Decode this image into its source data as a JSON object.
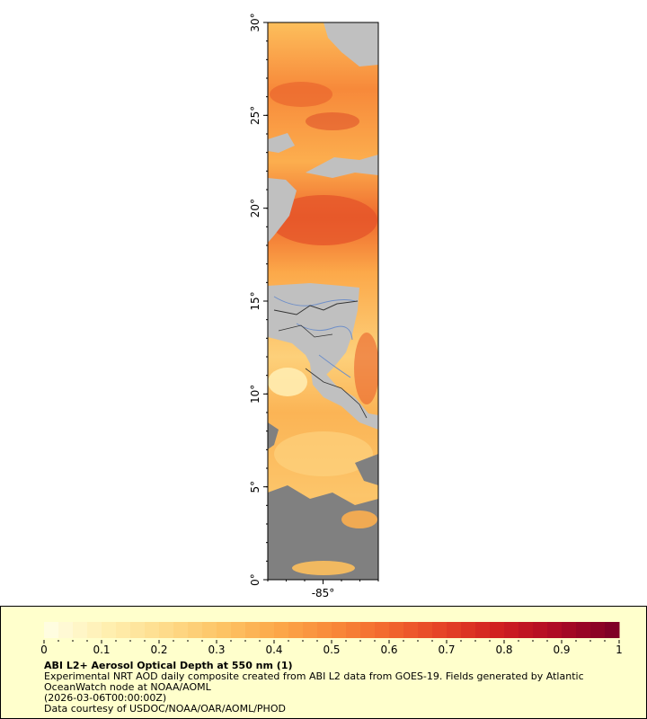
{
  "map": {
    "lat_labels": [
      "0°",
      "5°",
      "10°",
      "15°",
      "20°",
      "25°",
      "30°"
    ],
    "lat_values": [
      0,
      5,
      10,
      15,
      20,
      25,
      30
    ],
    "lon_labels": [
      "-85°"
    ],
    "lon_values": [
      -85
    ],
    "lat_range": [
      0,
      30
    ],
    "lon_range": [
      -88,
      -82
    ],
    "colors": {
      "ocean_land": "#c0c0c0",
      "no_data": "#808080",
      "rivers": "#6f8fc8",
      "borders": "#333333"
    }
  },
  "colorbar": {
    "tick_labels": [
      "0",
      "0.1",
      "0.2",
      "0.3",
      "0.4",
      "0.5",
      "0.6",
      "0.7",
      "0.8",
      "0.9",
      "1"
    ],
    "range": [
      0,
      1
    ],
    "colors": [
      "#fffde0",
      "#ffefb0",
      "#fedc8c",
      "#fdc566",
      "#fca94a",
      "#f98a3a",
      "#f2682e",
      "#e54226",
      "#d01f20",
      "#ae0a24",
      "#800026"
    ]
  },
  "caption": {
    "title": "ABI L2+ Aerosol Optical Depth at 550 nm (1)",
    "description": "Experimental NRT AOD daily composite created from ABI L2 data from GOES-19. Fields generated by Atlantic OceanWatch node at NOAA/AOML",
    "timestamp": "(2026-03-06T00:00:00Z)",
    "credit": "Data courtesy of USDOC/NOAA/OAR/AOML/PHOD"
  }
}
